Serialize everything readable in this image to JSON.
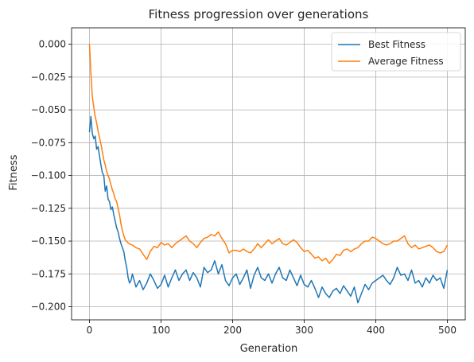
{
  "chart_data": {
    "type": "line",
    "title": "Fitness progression over generations",
    "xlabel": "Generation",
    "ylabel": "Fitness",
    "xlim": [
      -25,
      525
    ],
    "ylim": [
      -0.21,
      0.0125
    ],
    "xticks": [
      0,
      100,
      200,
      300,
      400,
      500
    ],
    "yticks": [
      0.0,
      -0.025,
      -0.05,
      -0.075,
      -0.1,
      -0.125,
      -0.15,
      -0.175,
      -0.2
    ],
    "ytick_labels": [
      "0.000",
      "−0.025",
      "−0.050",
      "−0.075",
      "−0.100",
      "−0.125",
      "−0.150",
      "−0.175",
      "−0.200"
    ],
    "xtick_labels": [
      "0",
      "100",
      "200",
      "300",
      "400",
      "500"
    ],
    "grid": true,
    "legend_position": "top-right",
    "series": [
      {
        "name": "Best Fitness",
        "color": "#1f77b4",
        "points": [
          [
            0,
            -0.067
          ],
          [
            2,
            -0.055
          ],
          [
            4,
            -0.068
          ],
          [
            6,
            -0.072
          ],
          [
            8,
            -0.07
          ],
          [
            10,
            -0.08
          ],
          [
            12,
            -0.078
          ],
          [
            14,
            -0.085
          ],
          [
            16,
            -0.092
          ],
          [
            18,
            -0.098
          ],
          [
            20,
            -0.1
          ],
          [
            22,
            -0.112
          ],
          [
            24,
            -0.108
          ],
          [
            26,
            -0.118
          ],
          [
            28,
            -0.12
          ],
          [
            30,
            -0.126
          ],
          [
            32,
            -0.124
          ],
          [
            34,
            -0.13
          ],
          [
            36,
            -0.135
          ],
          [
            38,
            -0.14
          ],
          [
            40,
            -0.143
          ],
          [
            42,
            -0.148
          ],
          [
            44,
            -0.152
          ],
          [
            46,
            -0.155
          ],
          [
            48,
            -0.158
          ],
          [
            50,
            -0.165
          ],
          [
            52,
            -0.17
          ],
          [
            54,
            -0.178
          ],
          [
            56,
            -0.182
          ],
          [
            58,
            -0.18
          ],
          [
            60,
            -0.175
          ],
          [
            65,
            -0.185
          ],
          [
            70,
            -0.18
          ],
          [
            75,
            -0.187
          ],
          [
            80,
            -0.182
          ],
          [
            85,
            -0.175
          ],
          [
            90,
            -0.18
          ],
          [
            95,
            -0.186
          ],
          [
            100,
            -0.183
          ],
          [
            105,
            -0.176
          ],
          [
            110,
            -0.185
          ],
          [
            115,
            -0.178
          ],
          [
            120,
            -0.172
          ],
          [
            125,
            -0.18
          ],
          [
            130,
            -0.175
          ],
          [
            135,
            -0.172
          ],
          [
            140,
            -0.18
          ],
          [
            145,
            -0.174
          ],
          [
            150,
            -0.178
          ],
          [
            155,
            -0.185
          ],
          [
            160,
            -0.17
          ],
          [
            165,
            -0.174
          ],
          [
            170,
            -0.172
          ],
          [
            175,
            -0.165
          ],
          [
            180,
            -0.175
          ],
          [
            185,
            -0.168
          ],
          [
            190,
            -0.18
          ],
          [
            195,
            -0.184
          ],
          [
            200,
            -0.178
          ],
          [
            205,
            -0.175
          ],
          [
            210,
            -0.183
          ],
          [
            215,
            -0.178
          ],
          [
            220,
            -0.172
          ],
          [
            225,
            -0.186
          ],
          [
            230,
            -0.176
          ],
          [
            235,
            -0.17
          ],
          [
            240,
            -0.178
          ],
          [
            245,
            -0.18
          ],
          [
            250,
            -0.175
          ],
          [
            255,
            -0.182
          ],
          [
            260,
            -0.175
          ],
          [
            265,
            -0.17
          ],
          [
            270,
            -0.178
          ],
          [
            275,
            -0.18
          ],
          [
            280,
            -0.172
          ],
          [
            285,
            -0.178
          ],
          [
            290,
            -0.184
          ],
          [
            295,
            -0.176
          ],
          [
            300,
            -0.183
          ],
          [
            305,
            -0.185
          ],
          [
            310,
            -0.18
          ],
          [
            315,
            -0.186
          ],
          [
            320,
            -0.193
          ],
          [
            325,
            -0.185
          ],
          [
            330,
            -0.19
          ],
          [
            335,
            -0.193
          ],
          [
            340,
            -0.188
          ],
          [
            345,
            -0.186
          ],
          [
            350,
            -0.19
          ],
          [
            355,
            -0.184
          ],
          [
            360,
            -0.188
          ],
          [
            365,
            -0.192
          ],
          [
            370,
            -0.185
          ],
          [
            375,
            -0.197
          ],
          [
            380,
            -0.19
          ],
          [
            385,
            -0.183
          ],
          [
            390,
            -0.187
          ],
          [
            395,
            -0.182
          ],
          [
            400,
            -0.18
          ],
          [
            405,
            -0.178
          ],
          [
            410,
            -0.176
          ],
          [
            415,
            -0.18
          ],
          [
            420,
            -0.183
          ],
          [
            425,
            -0.178
          ],
          [
            430,
            -0.17
          ],
          [
            435,
            -0.176
          ],
          [
            440,
            -0.175
          ],
          [
            445,
            -0.18
          ],
          [
            450,
            -0.172
          ],
          [
            455,
            -0.182
          ],
          [
            460,
            -0.18
          ],
          [
            465,
            -0.185
          ],
          [
            470,
            -0.178
          ],
          [
            475,
            -0.182
          ],
          [
            480,
            -0.176
          ],
          [
            485,
            -0.18
          ],
          [
            490,
            -0.178
          ],
          [
            495,
            -0.186
          ],
          [
            500,
            -0.172
          ]
        ]
      },
      {
        "name": "Average Fitness",
        "color": "#ff7f0e",
        "points": [
          [
            0,
            0.0
          ],
          [
            2,
            -0.022
          ],
          [
            4,
            -0.04
          ],
          [
            6,
            -0.048
          ],
          [
            8,
            -0.055
          ],
          [
            10,
            -0.06
          ],
          [
            12,
            -0.066
          ],
          [
            14,
            -0.071
          ],
          [
            16,
            -0.076
          ],
          [
            18,
            -0.082
          ],
          [
            20,
            -0.088
          ],
          [
            22,
            -0.092
          ],
          [
            24,
            -0.097
          ],
          [
            26,
            -0.1
          ],
          [
            28,
            -0.103
          ],
          [
            30,
            -0.107
          ],
          [
            32,
            -0.111
          ],
          [
            34,
            -0.114
          ],
          [
            36,
            -0.118
          ],
          [
            38,
            -0.12
          ],
          [
            40,
            -0.125
          ],
          [
            42,
            -0.13
          ],
          [
            44,
            -0.137
          ],
          [
            46,
            -0.142
          ],
          [
            48,
            -0.146
          ],
          [
            50,
            -0.149
          ],
          [
            55,
            -0.152
          ],
          [
            60,
            -0.153
          ],
          [
            65,
            -0.155
          ],
          [
            70,
            -0.156
          ],
          [
            75,
            -0.16
          ],
          [
            80,
            -0.164
          ],
          [
            85,
            -0.158
          ],
          [
            90,
            -0.154
          ],
          [
            95,
            -0.155
          ],
          [
            100,
            -0.151
          ],
          [
            105,
            -0.153
          ],
          [
            110,
            -0.152
          ],
          [
            115,
            -0.155
          ],
          [
            120,
            -0.152
          ],
          [
            125,
            -0.15
          ],
          [
            130,
            -0.148
          ],
          [
            135,
            -0.146
          ],
          [
            140,
            -0.15
          ],
          [
            145,
            -0.152
          ],
          [
            150,
            -0.155
          ],
          [
            155,
            -0.151
          ],
          [
            160,
            -0.148
          ],
          [
            165,
            -0.147
          ],
          [
            170,
            -0.145
          ],
          [
            175,
            -0.146
          ],
          [
            180,
            -0.143
          ],
          [
            185,
            -0.148
          ],
          [
            190,
            -0.152
          ],
          [
            195,
            -0.159
          ],
          [
            200,
            -0.157
          ],
          [
            205,
            -0.157
          ],
          [
            210,
            -0.158
          ],
          [
            215,
            -0.156
          ],
          [
            220,
            -0.158
          ],
          [
            225,
            -0.159
          ],
          [
            230,
            -0.156
          ],
          [
            235,
            -0.152
          ],
          [
            240,
            -0.155
          ],
          [
            245,
            -0.152
          ],
          [
            250,
            -0.149
          ],
          [
            255,
            -0.152
          ],
          [
            260,
            -0.15
          ],
          [
            265,
            -0.148
          ],
          [
            270,
            -0.152
          ],
          [
            275,
            -0.153
          ],
          [
            280,
            -0.151
          ],
          [
            285,
            -0.149
          ],
          [
            290,
            -0.151
          ],
          [
            295,
            -0.155
          ],
          [
            300,
            -0.158
          ],
          [
            305,
            -0.157
          ],
          [
            310,
            -0.16
          ],
          [
            315,
            -0.163
          ],
          [
            320,
            -0.162
          ],
          [
            325,
            -0.165
          ],
          [
            330,
            -0.163
          ],
          [
            335,
            -0.167
          ],
          [
            340,
            -0.164
          ],
          [
            345,
            -0.16
          ],
          [
            350,
            -0.161
          ],
          [
            355,
            -0.157
          ],
          [
            360,
            -0.156
          ],
          [
            365,
            -0.158
          ],
          [
            370,
            -0.156
          ],
          [
            375,
            -0.155
          ],
          [
            380,
            -0.152
          ],
          [
            385,
            -0.15
          ],
          [
            390,
            -0.15
          ],
          [
            395,
            -0.147
          ],
          [
            400,
            -0.148
          ],
          [
            405,
            -0.15
          ],
          [
            410,
            -0.152
          ],
          [
            415,
            -0.153
          ],
          [
            420,
            -0.152
          ],
          [
            425,
            -0.15
          ],
          [
            430,
            -0.15
          ],
          [
            435,
            -0.148
          ],
          [
            440,
            -0.146
          ],
          [
            445,
            -0.152
          ],
          [
            450,
            -0.155
          ],
          [
            455,
            -0.153
          ],
          [
            460,
            -0.156
          ],
          [
            465,
            -0.155
          ],
          [
            470,
            -0.154
          ],
          [
            475,
            -0.153
          ],
          [
            480,
            -0.155
          ],
          [
            485,
            -0.158
          ],
          [
            490,
            -0.159
          ],
          [
            495,
            -0.158
          ],
          [
            500,
            -0.153
          ]
        ]
      }
    ]
  }
}
